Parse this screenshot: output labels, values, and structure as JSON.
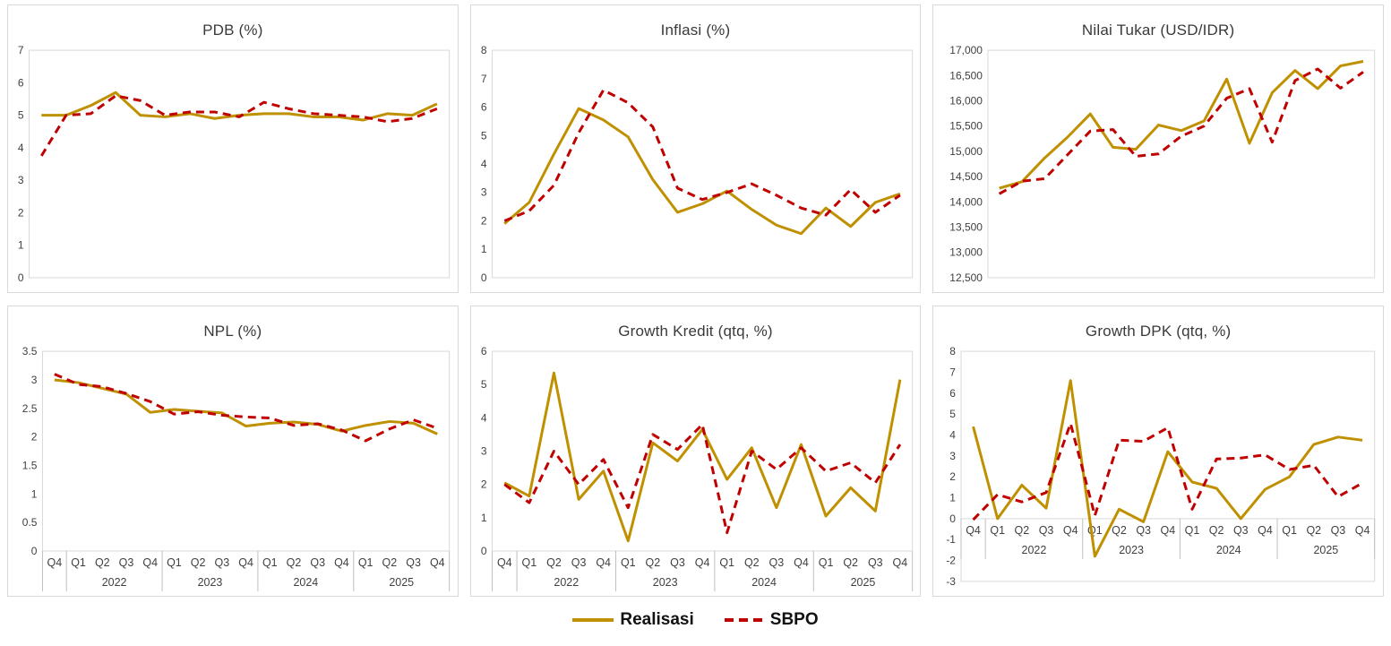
{
  "legend": {
    "realisasi_label": "Realisasi",
    "sbpo_label": "SBPO"
  },
  "colors": {
    "realisasi": "#BF9000",
    "sbpo": "#C00000",
    "plot_border": "#D9D9D9",
    "separator": "#BFBFBF",
    "axis_text": "#404040"
  },
  "x_axis": {
    "quarters": [
      "Q4",
      "Q1",
      "Q2",
      "Q3",
      "Q4",
      "Q1",
      "Q2",
      "Q3",
      "Q4",
      "Q1",
      "Q2",
      "Q3",
      "Q4",
      "Q1",
      "Q2",
      "Q3",
      "Q4"
    ],
    "year_groups": [
      {
        "label": "",
        "span": 1
      },
      {
        "label": "2022",
        "span": 4
      },
      {
        "label": "2023",
        "span": 4
      },
      {
        "label": "2024",
        "span": 4
      },
      {
        "label": "2025",
        "span": 4
      }
    ]
  },
  "chart_data": [
    {
      "type": "line",
      "title": "PDB (%)",
      "ylim": [
        0,
        7
      ],
      "y_step": 1,
      "y_ticks": [
        "0",
        "1",
        "2",
        "3",
        "4",
        "5",
        "6",
        "7"
      ],
      "x_label_pos": "none",
      "legend_position": "shared-bottom",
      "grid": false,
      "series": [
        {
          "name": "Realisasi",
          "values": [
            5.0,
            5.0,
            5.3,
            5.7,
            5.0,
            4.95,
            5.05,
            4.9,
            5.0,
            5.05,
            5.05,
            4.95,
            4.95,
            4.85,
            5.05,
            5.0,
            5.35
          ]
        },
        {
          "name": "SBPO",
          "values": [
            3.75,
            5.0,
            5.05,
            5.6,
            5.45,
            5.0,
            5.1,
            5.1,
            4.95,
            5.4,
            5.2,
            5.05,
            5.0,
            4.95,
            4.8,
            4.9,
            5.2
          ]
        }
      ]
    },
    {
      "type": "line",
      "title": "Inflasi (%)",
      "ylim": [
        0,
        8
      ],
      "y_step": 1,
      "y_ticks": [
        "0",
        "1",
        "2",
        "3",
        "4",
        "5",
        "6",
        "7",
        "8"
      ],
      "x_label_pos": "none",
      "legend_position": "shared-bottom",
      "grid": false,
      "series": [
        {
          "name": "Realisasi",
          "values": [
            1.9,
            2.65,
            4.35,
            5.95,
            5.55,
            4.95,
            3.45,
            2.3,
            2.6,
            3.05,
            2.4,
            1.85,
            1.55,
            2.45,
            1.8,
            2.65,
            2.95
          ]
        },
        {
          "name": "SBPO",
          "values": [
            2.0,
            2.35,
            3.25,
            5.1,
            6.6,
            6.15,
            5.3,
            3.15,
            2.75,
            3.0,
            3.3,
            2.9,
            2.45,
            2.2,
            3.1,
            2.3,
            2.9
          ]
        }
      ]
    },
    {
      "type": "line",
      "title": "Nilai Tukar (USD/IDR)",
      "ylim": [
        12500,
        17000
      ],
      "y_step": 500,
      "y_ticks": [
        "12,500",
        "13,000",
        "13,500",
        "14,000",
        "14,500",
        "15,000",
        "15,500",
        "16,000",
        "16,500",
        "17,000"
      ],
      "x_label_pos": "none",
      "legend_position": "shared-bottom",
      "grid": false,
      "series": [
        {
          "name": "Realisasi",
          "values": [
            14270,
            14400,
            14870,
            15280,
            15740,
            15080,
            15040,
            15520,
            15410,
            15600,
            16430,
            15160,
            16160,
            16600,
            16240,
            16690,
            16780
          ]
        },
        {
          "name": "SBPO",
          "values": [
            14160,
            14410,
            14460,
            14930,
            15400,
            15430,
            14900,
            14950,
            15300,
            15500,
            16050,
            16240,
            15180,
            16400,
            16630,
            16250,
            16570
          ]
        }
      ]
    },
    {
      "type": "line",
      "title": "NPL (%)",
      "ylim": [
        0,
        3.5
      ],
      "y_step": 0.5,
      "y_ticks": [
        "0",
        "0.5",
        "1",
        "1.5",
        "2",
        "2.5",
        "3",
        "3.5"
      ],
      "x_label_pos": "below",
      "legend_position": "shared-bottom",
      "grid": false,
      "series": [
        {
          "name": "Realisasi",
          "values": [
            3.0,
            2.95,
            2.85,
            2.75,
            2.43,
            2.48,
            2.45,
            2.42,
            2.19,
            2.24,
            2.26,
            2.22,
            2.1,
            2.2,
            2.27,
            2.24,
            2.05
          ]
        },
        {
          "name": "SBPO",
          "values": [
            3.1,
            2.92,
            2.88,
            2.76,
            2.62,
            2.4,
            2.44,
            2.38,
            2.35,
            2.33,
            2.2,
            2.23,
            2.12,
            1.93,
            2.14,
            2.3,
            2.15
          ]
        }
      ]
    },
    {
      "type": "line",
      "title": "Growth Kredit (qtq, %)",
      "ylim": [
        0,
        6
      ],
      "y_step": 1,
      "y_ticks": [
        "0",
        "1",
        "2",
        "3",
        "4",
        "5",
        "6"
      ],
      "x_label_pos": "below",
      "legend_position": "shared-bottom",
      "grid": false,
      "series": [
        {
          "name": "Realisasi",
          "values": [
            2.05,
            1.65,
            5.35,
            1.55,
            2.4,
            0.3,
            3.25,
            2.7,
            3.65,
            2.15,
            3.1,
            1.3,
            3.2,
            1.05,
            1.9,
            1.2,
            5.15
          ]
        },
        {
          "name": "SBPO",
          "values": [
            2.0,
            1.45,
            3.0,
            2.0,
            2.75,
            1.3,
            3.5,
            3.05,
            3.8,
            0.55,
            3.0,
            2.45,
            3.1,
            2.4,
            2.65,
            2.05,
            3.2
          ]
        }
      ]
    },
    {
      "type": "line",
      "title": "Growth DPK (qtq, %)",
      "ylim": [
        -3,
        8
      ],
      "y_step": 1,
      "y_ticks": [
        "-3",
        "-2",
        "-1",
        "0",
        "1",
        "2",
        "3",
        "4",
        "5",
        "6",
        "7",
        "8"
      ],
      "x_label_pos": "zero-line",
      "legend_position": "shared-bottom",
      "grid": false,
      "series": [
        {
          "name": "Realisasi",
          "values": [
            4.4,
            0.0,
            1.6,
            0.5,
            6.6,
            -1.8,
            0.45,
            -0.15,
            3.2,
            1.75,
            1.45,
            0.0,
            1.4,
            2.0,
            3.55,
            3.9,
            3.75
          ]
        },
        {
          "name": "SBPO",
          "values": [
            -0.05,
            1.15,
            0.8,
            1.25,
            4.55,
            0.15,
            3.75,
            3.7,
            4.35,
            0.45,
            2.85,
            2.9,
            3.05,
            2.35,
            2.55,
            1.05,
            1.7
          ]
        }
      ]
    }
  ]
}
